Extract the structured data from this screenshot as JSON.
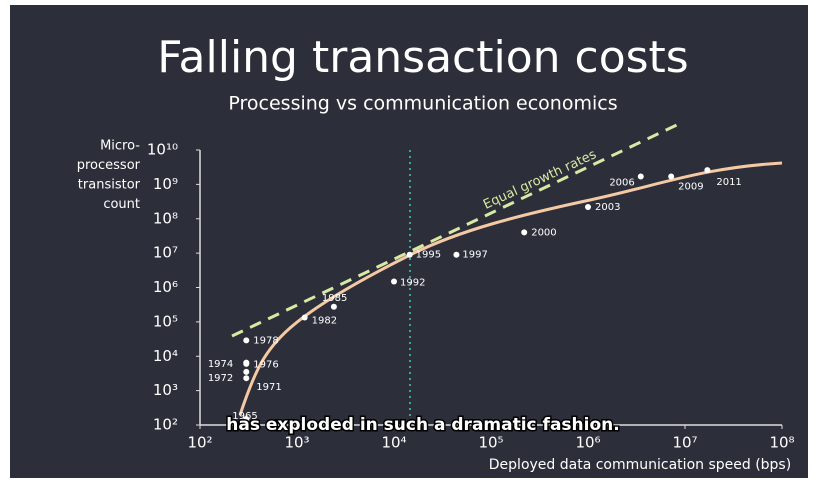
{
  "caption": "has exploded in such a dramatic fashion.",
  "chart_data": {
    "type": "scatter",
    "title": "Falling transaction costs",
    "subtitle": "Processing vs communication economics",
    "ylabel": [
      "Micro-",
      "processor",
      "transistor",
      "count"
    ],
    "xlabel": "Deployed data communication speed (bps)",
    "annotation": "Equal growth rates",
    "labels": [
      "1965",
      "1971",
      "1972",
      "1974",
      "1976",
      "1978",
      "1982",
      "1985",
      "1992",
      "1995",
      "1997",
      "2000",
      "2003",
      "2006",
      "2009",
      "2011"
    ],
    "x": [
      300,
      300,
      300,
      300,
      300,
      300,
      1200,
      2400,
      10000,
      14500,
      44000,
      220000,
      1000000,
      3500000,
      7200000,
      17000000
    ],
    "values": [
      150,
      2300,
      3500,
      6000,
      6500,
      29000,
      134000,
      275000,
      1500000,
      9000000,
      9000000,
      40000000,
      220000000,
      1700000000,
      1700000000,
      2600000000
    ],
    "color": "#ffffff",
    "xlog": true,
    "ylog": true,
    "xlim": [
      100,
      100000000
    ],
    "ylim": [
      100,
      10000000000
    ],
    "xticks": [
      {
        "value": 100,
        "label": "10²"
      },
      {
        "value": 1000,
        "label": "10³"
      },
      {
        "value": 10000,
        "label": "10⁴"
      },
      {
        "value": 100000,
        "label": "10⁵"
      },
      {
        "value": 1000000,
        "label": "10⁶"
      },
      {
        "value": 10000000,
        "label": "10⁷"
      },
      {
        "value": 100000000,
        "label": "10⁸"
      }
    ],
    "yticks": [
      {
        "value": 100,
        "label": "10²"
      },
      {
        "value": 1000,
        "label": "10³"
      },
      {
        "value": 10000,
        "label": "10⁴"
      },
      {
        "value": 100000,
        "label": "10⁵"
      },
      {
        "value": 1000000,
        "label": "10⁶"
      },
      {
        "value": 10000000,
        "label": "10⁷"
      },
      {
        "value": 100000000,
        "label": "10⁸"
      },
      {
        "value": 1000000000,
        "label": "10⁹"
      },
      {
        "value": 10000000000,
        "label": "10¹⁰"
      }
    ]
  }
}
